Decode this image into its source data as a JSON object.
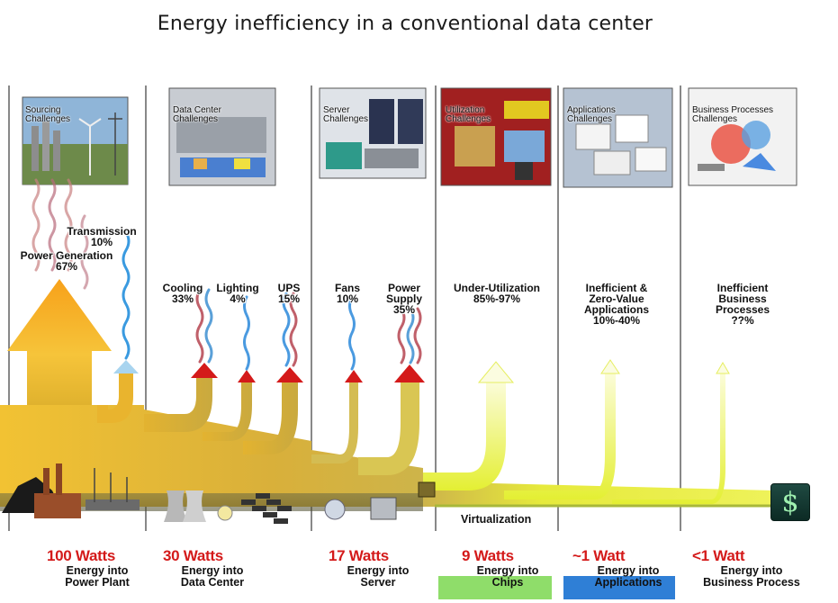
{
  "title": "Energy inefficiency in a conventional data center",
  "colors": {
    "flow_orange": "#f5a623",
    "flow_gold": "#d9b83a",
    "flow_yellow": "#e4ee3a",
    "loss_red": "#d41a1a",
    "band_green": "#8fdd6a",
    "band_blue": "#2f7fd6"
  },
  "panels": [
    {
      "line1": "Sourcing",
      "line2": "Challenges"
    },
    {
      "line1": "Data Center",
      "line2": "Challenges"
    },
    {
      "line1": "Server",
      "line2": "Challenges"
    },
    {
      "line1": "Utilization",
      "line2": "Challenges"
    },
    {
      "line1": "Applications",
      "line2": "Challenges"
    },
    {
      "line1": "Business Processes",
      "line2": "Challenges"
    }
  ],
  "losses": {
    "transmission": {
      "name": "Transmission",
      "pct": "10%"
    },
    "power_generation": {
      "name": "Power Generation",
      "pct": "67%"
    },
    "cooling": {
      "name": "Cooling",
      "pct": "33%"
    },
    "lighting": {
      "name": "Lighting",
      "pct": "4%"
    },
    "ups": {
      "name": "UPS",
      "pct": "15%"
    },
    "fans": {
      "name": "Fans",
      "pct": "10%"
    },
    "power_supply": {
      "line1": "Power",
      "line2": "Supply",
      "pct": "35%"
    },
    "under_utilization": {
      "name": "Under-Utilization",
      "pct": "85%-97%"
    },
    "inefficient_apps": {
      "line1": "Inefficient &",
      "line2": "Zero-Value",
      "line3": "Applications",
      "pct": "10%-40%"
    },
    "inefficient_business": {
      "line1": "Inefficient",
      "line2": "Business",
      "line3": "Processes",
      "pct": "??%"
    }
  },
  "virtualization_label": "Virtualization",
  "dollar_symbol": "$",
  "stages": [
    {
      "watts": "100 Watts",
      "line1": "Energy into",
      "line2": "Power Plant"
    },
    {
      "watts": "30 Watts",
      "line1": "Energy into",
      "line2": "Data Center"
    },
    {
      "watts": "17 Watts",
      "line1": "Energy into",
      "line2": "Server"
    },
    {
      "watts": "9 Watts",
      "line1": "Energy into",
      "line2": "Chips"
    },
    {
      "watts": "~1 Watt",
      "line1": "Energy into",
      "line2": "Applications"
    },
    {
      "watts": "<1 Watt",
      "line1": "Energy into",
      "line2": "Business Process"
    }
  ]
}
